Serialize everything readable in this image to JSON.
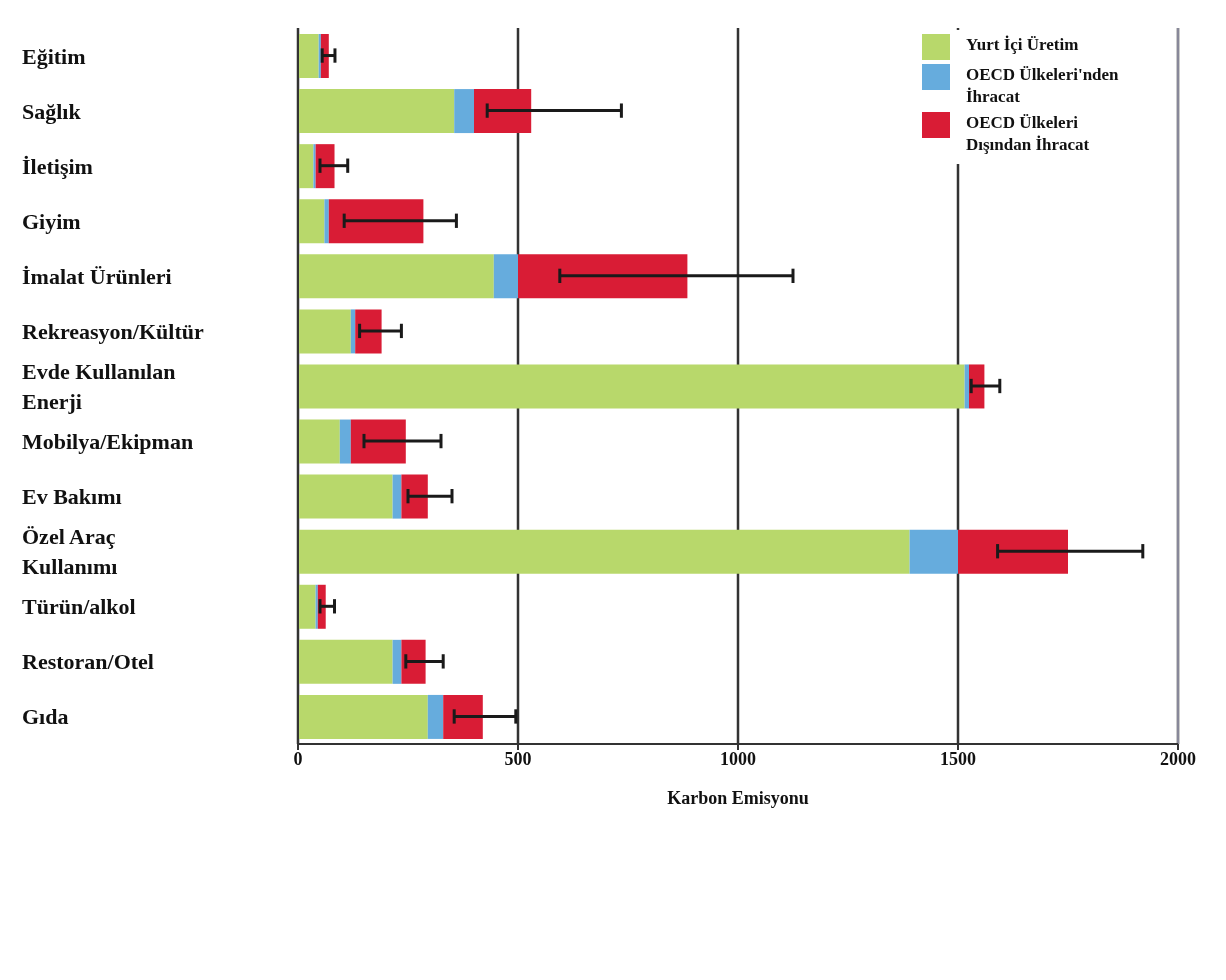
{
  "chart_data": {
    "type": "bar",
    "orientation": "horizontal",
    "stacked": true,
    "xlabel": "Karbon Emisyonu",
    "categories": [
      "Eğitim",
      "Sağlık",
      "İletişim",
      "Giyim",
      "İmalat Ürünleri",
      "Rekreasyon/Kültür",
      "Evde Kullanılan Enerji",
      "Mobilya/Ekipman",
      "Ev Bakımı",
      "Özel Araç Kullanımı",
      "Türün/alkol",
      "Restoran/Otel",
      "Gıda"
    ],
    "series": [
      {
        "name": "Yurt İçi Üretim",
        "color": "#b8d86b",
        "values": [
          47,
          355,
          35,
          60,
          445,
          120,
          1515,
          95,
          215,
          1390,
          40,
          215,
          295
        ]
      },
      {
        "name": "OECD Ülkeleri'nden İhracat",
        "color": "#66acdd",
        "values": [
          5,
          45,
          5,
          10,
          55,
          10,
          10,
          25,
          20,
          110,
          5,
          20,
          35
        ]
      },
      {
        "name": "OECD Ülkeleri Dışından İhracat",
        "color": "#d91c35",
        "values": [
          18,
          130,
          43,
          215,
          385,
          60,
          35,
          125,
          60,
          250,
          18,
          55,
          90
        ],
        "errors": [
          [
            55,
            84
          ],
          [
            430,
            735
          ],
          [
            50,
            113
          ],
          [
            105,
            360
          ],
          [
            595,
            1125
          ],
          [
            140,
            235
          ],
          [
            1530,
            1595
          ],
          [
            150,
            325
          ],
          [
            250,
            350
          ],
          [
            1590,
            1920
          ],
          [
            50,
            83
          ],
          [
            245,
            330
          ],
          [
            355,
            495
          ]
        ]
      }
    ],
    "xlim": [
      0,
      2000
    ],
    "xticks": [
      0,
      500,
      1000,
      1500,
      2000
    ],
    "grid": "x",
    "legend": "top right"
  }
}
